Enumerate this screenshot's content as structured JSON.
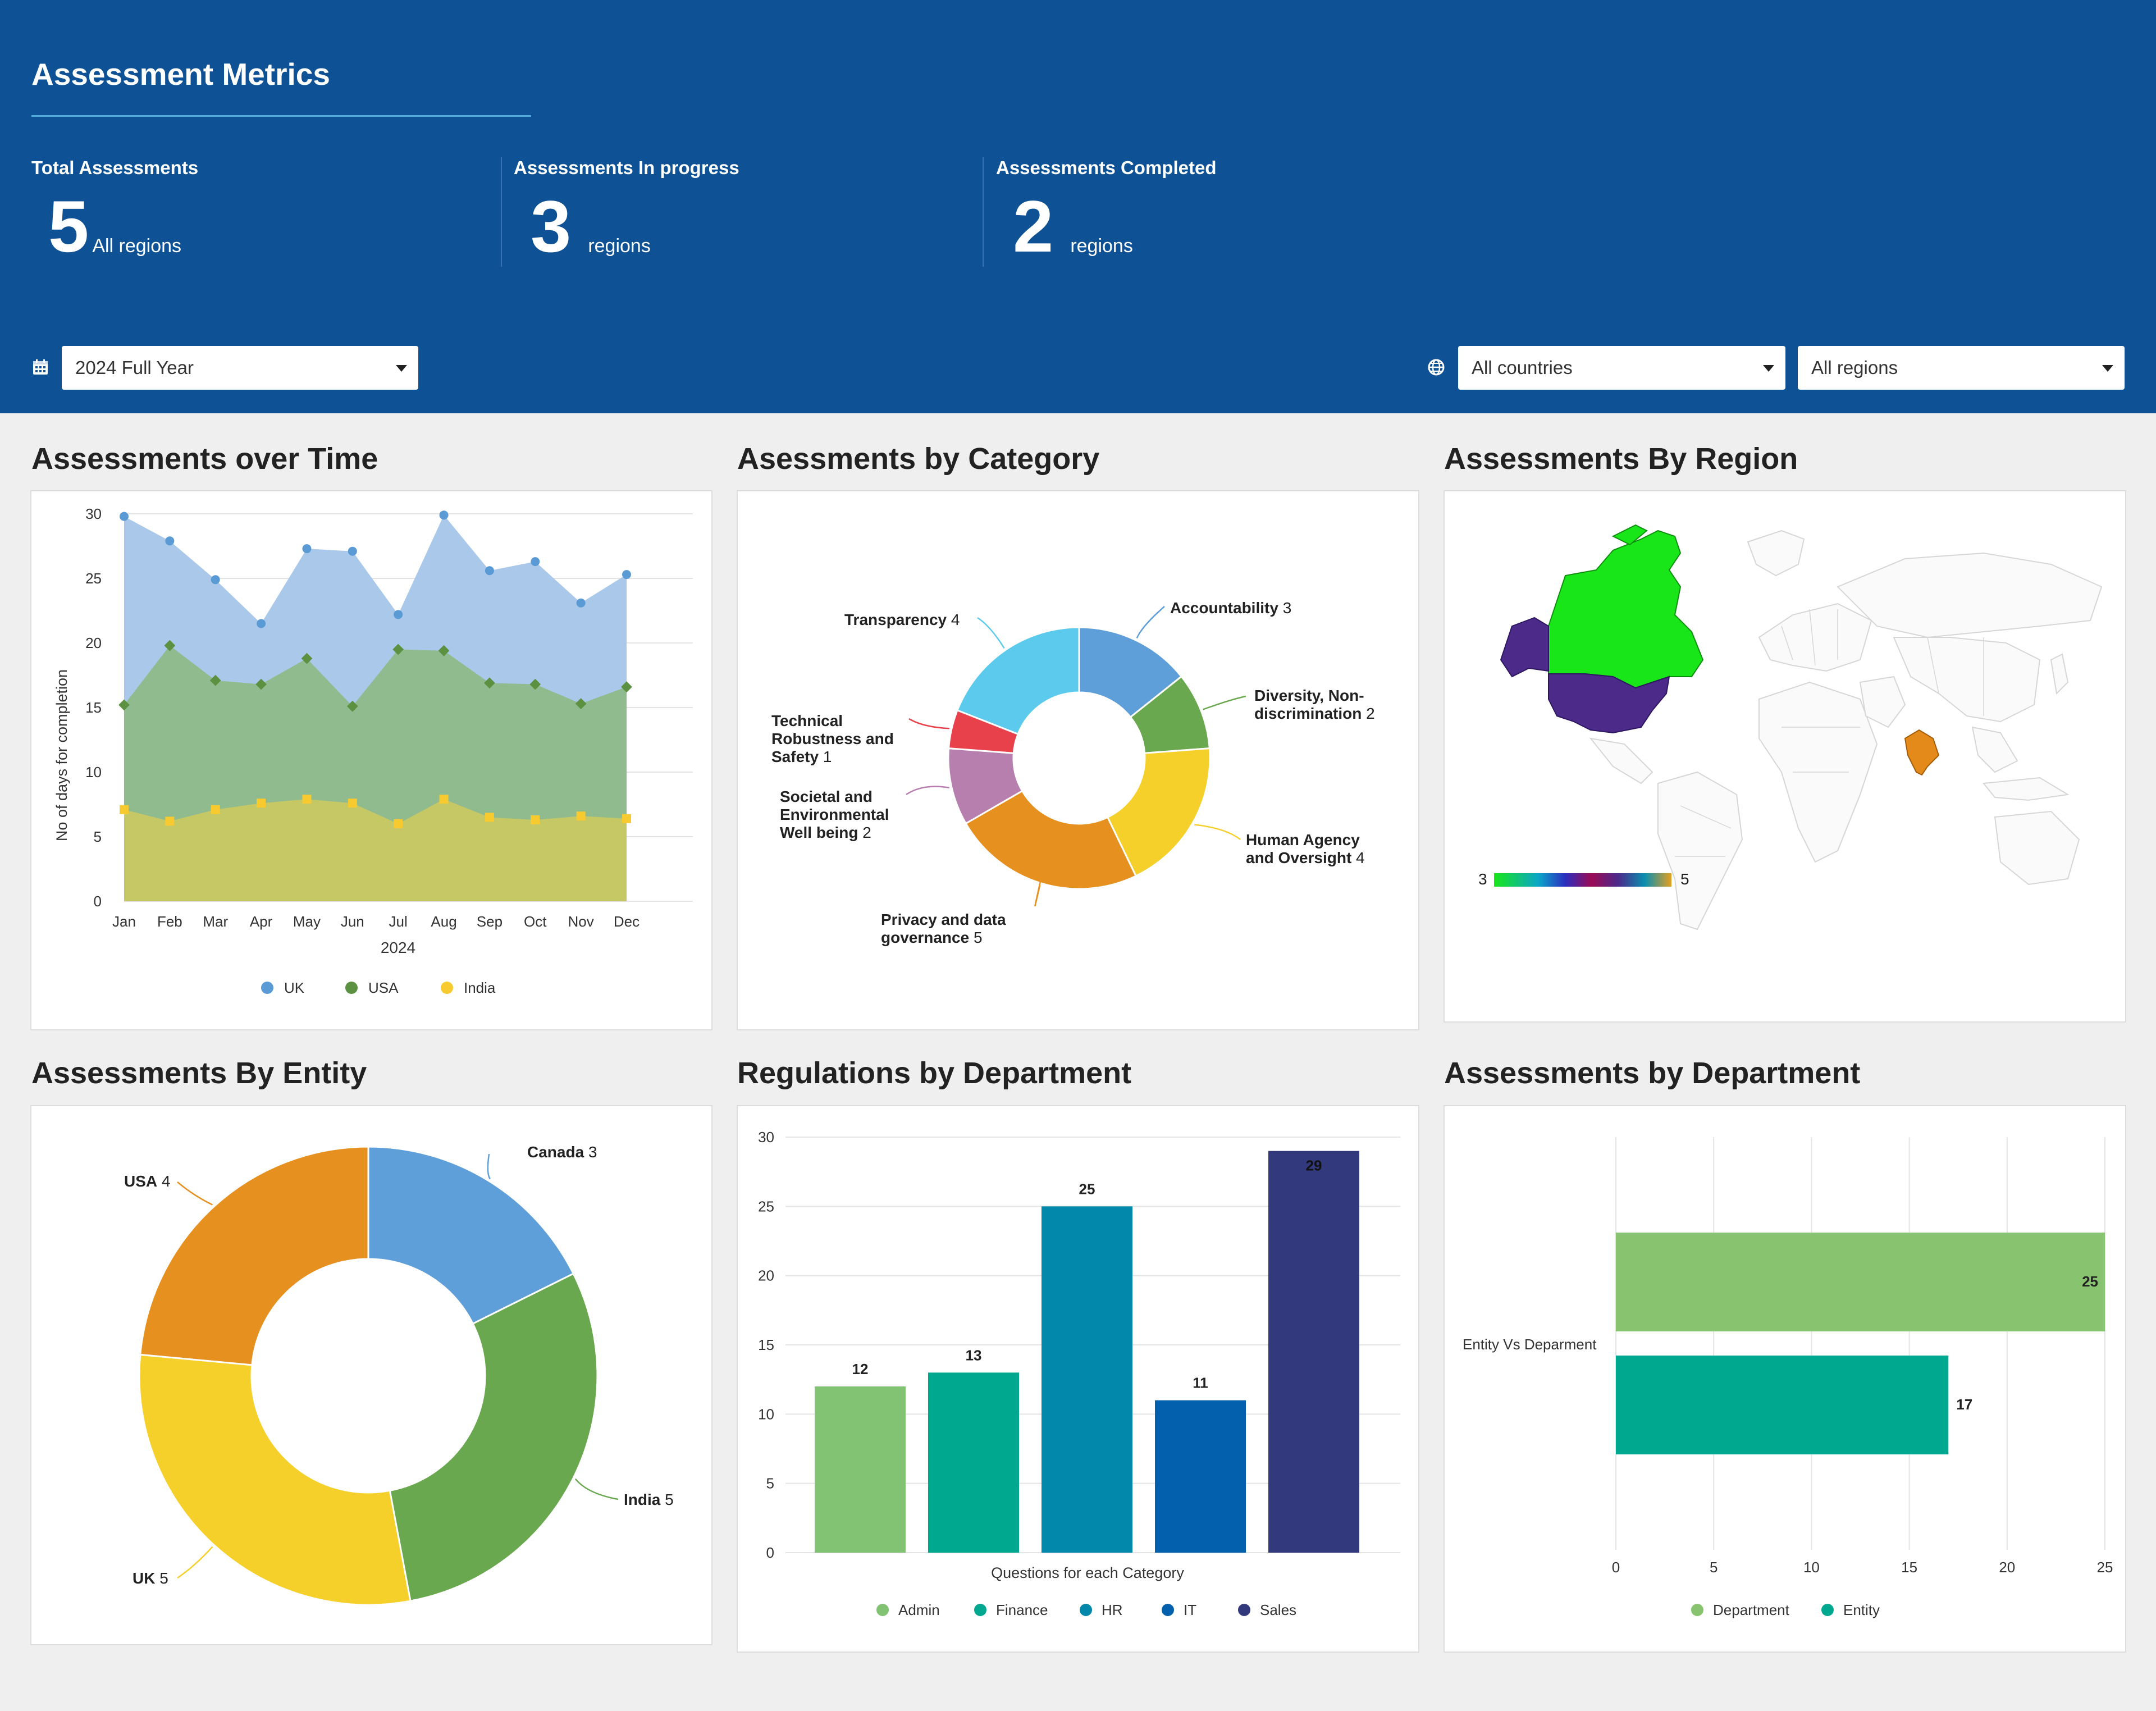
{
  "header": {
    "title": "Assessment Metrics",
    "stats": [
      {
        "label": "Total Assessments",
        "value": "5",
        "unit": "All regions"
      },
      {
        "label": "Assessments In progress",
        "value": "3",
        "unit": "regions"
      },
      {
        "label": "Assessments Completed",
        "value": "2",
        "unit": "regions"
      }
    ],
    "filters": {
      "period": "2024 Full Year",
      "countries": "All countries",
      "regions": "All regions"
    }
  },
  "sections": {
    "over_time": "Assessments over Time",
    "by_category": "Asessments by Category",
    "by_region": "Assessments By Region",
    "by_entity": "Assessments By Entity",
    "regulations": "Regulations by Department",
    "by_department": "Assessments by Department"
  },
  "chart_data": [
    {
      "id": "over_time",
      "type": "area",
      "categories": [
        "Jan",
        "Feb",
        "Mar",
        "Apr",
        "May",
        "Jun",
        "Jul",
        "Aug",
        "Sep",
        "Oct",
        "Nov",
        "Dec"
      ],
      "series": [
        {
          "name": "UK",
          "color": "#a9c8ea",
          "marker": "#5b9bd5",
          "values": [
            29.8,
            27.9,
            24.9,
            21.5,
            27.3,
            27.1,
            22.2,
            29.9,
            25.6,
            26.3,
            23.1,
            25.3
          ]
        },
        {
          "name": "USA",
          "color": "#8fbb8f",
          "marker": "#5b9140",
          "values": [
            15.2,
            19.8,
            17.1,
            16.8,
            18.8,
            15.1,
            19.5,
            19.4,
            16.9,
            16.8,
            15.3,
            16.6
          ]
        },
        {
          "name": "India",
          "color": "#c6c765",
          "marker": "#f7cb2f",
          "values": [
            7.1,
            6.2,
            7.1,
            7.6,
            7.9,
            7.6,
            6.0,
            7.9,
            6.5,
            6.3,
            6.6,
            6.4
          ]
        }
      ],
      "ylabel": "No of days for completion",
      "xlabel": "2024",
      "ylim": [
        0,
        30
      ],
      "yticks": [
        0,
        5,
        10,
        15,
        20,
        25,
        30
      ],
      "legend": "bottom"
    },
    {
      "id": "by_category",
      "type": "pie",
      "donut": true,
      "slices": [
        {
          "label": "Accountability",
          "value": 3,
          "color": "#5f9fd9"
        },
        {
          "label": "Diversity, Non-discrimination",
          "value": 2,
          "color": "#6aa84f"
        },
        {
          "label": "Human Agency and Oversight",
          "value": 4,
          "color": "#f5d02a"
        },
        {
          "label": "Privacy and data governance",
          "value": 5,
          "color": "#e69020"
        },
        {
          "label": "Societal and Environmental Well being",
          "value": 2,
          "color": "#b77fae"
        },
        {
          "label": "Technical Robustness and Safety",
          "value": 1,
          "color": "#e8414b"
        },
        {
          "label": "Transparency",
          "value": 4,
          "color": "#5bcaec"
        }
      ]
    },
    {
      "id": "by_region",
      "type": "heatmap",
      "highlighted": [
        {
          "name": "Canada",
          "color": "#19e619"
        },
        {
          "name": "Alaska",
          "color": "#4b2a8a"
        },
        {
          "name": "USA",
          "color": "#4b2a8a"
        },
        {
          "name": "India",
          "color": "#e48a1a"
        }
      ],
      "scale_min": "3",
      "scale_max": "5"
    },
    {
      "id": "by_entity",
      "type": "pie",
      "donut": true,
      "slices": [
        {
          "label": "Canada",
          "value": 3,
          "color": "#5f9fd9"
        },
        {
          "label": "India",
          "value": 5,
          "color": "#6aa84f"
        },
        {
          "label": "UK",
          "value": 5,
          "color": "#f5d02a"
        },
        {
          "label": "USA",
          "value": 4,
          "color": "#e69020"
        }
      ]
    },
    {
      "id": "regulations",
      "type": "bar",
      "categories": [
        "Admin",
        "Finance",
        "HR",
        "IT",
        "Sales"
      ],
      "values": [
        12,
        13,
        25,
        11,
        29
      ],
      "colors": [
        "#82c373",
        "#00a88f",
        "#0288aa",
        "#0260ad",
        "#33397d"
      ],
      "xlabel": "Questions for each Category",
      "ylim": [
        0,
        30
      ],
      "yticks": [
        0,
        5,
        10,
        15,
        20,
        25,
        30
      ],
      "legend": "bottom"
    },
    {
      "id": "by_department",
      "type": "bar",
      "orientation": "horizontal",
      "categories": [
        "Entity Vs Deparment"
      ],
      "series": [
        {
          "name": "Department",
          "value": 25,
          "color": "#88c470"
        },
        {
          "name": "Entity",
          "value": 17,
          "color": "#00a88f"
        }
      ],
      "xlim": [
        0,
        25
      ],
      "xticks": [
        0,
        5,
        10,
        15,
        20,
        25
      ],
      "legend": "bottom"
    }
  ]
}
